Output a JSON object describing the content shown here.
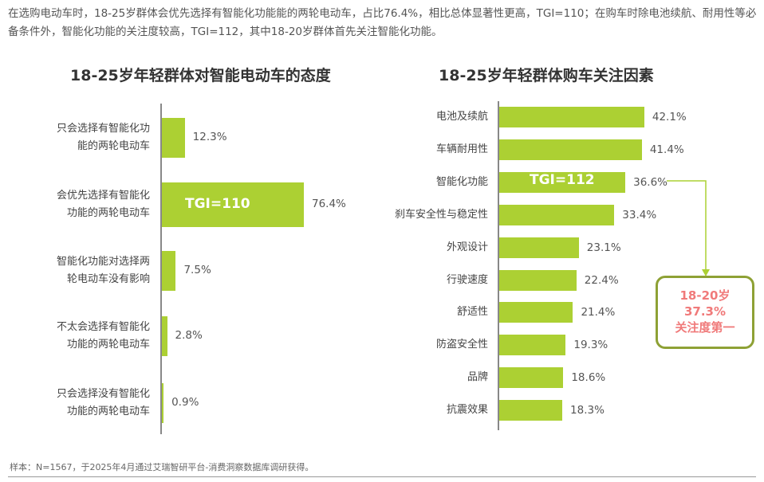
{
  "intro": "在选购电动车时，18-25岁群体会优先选择有智能化功能能的两轮电动车，占比76.4%，相比总体显著性更高，TGI=110；在购车时除电池续航、耐用性等必备条件外，智能化功能的关注度较高，TGI=112，其中18-20岁群体首先关注智能化功能。",
  "chart_data": [
    {
      "type": "bar",
      "orientation": "horizontal",
      "title": "18-25岁年轻群体对智能电动车的态度",
      "categories": [
        "只会选择有智能化功能的两轮电动车",
        "会优先选择有智能化功能的两轮电动车",
        "智能化功能对选择两轮电动车没有影响",
        "不太会选择有智能化功能的两轮电动车",
        "只会选择没有智能化功能的两轮电动车"
      ],
      "label_lines": [
        [
          "只会选择有智能化功",
          "能的两轮电动车"
        ],
        [
          "会优先选择有智能化",
          "功能的两轮电动车"
        ],
        [
          "智能化功能对选择两",
          "轮电动车没有影响"
        ],
        [
          "不太会选择有智能化",
          "功能的两轮电动车"
        ],
        [
          "只会选择没有智能化",
          "功能的两轮电动车"
        ]
      ],
      "values": [
        12.3,
        76.4,
        7.5,
        2.8,
        0.9
      ],
      "value_labels": [
        "12.3%",
        "76.4%",
        "7.5%",
        "2.8%",
        "0.9%"
      ],
      "annotation": "TGI=110",
      "unit": "%"
    },
    {
      "type": "bar",
      "orientation": "horizontal",
      "title": "18-25岁年轻群体购车关注因素",
      "categories": [
        "电池及续航",
        "车辆耐用性",
        "智能化功能",
        "刹车安全性与稳定性",
        "外观设计",
        "行驶速度",
        "舒适性",
        "防盗安全性",
        "品牌",
        "抗震效果"
      ],
      "values": [
        42.1,
        41.4,
        36.6,
        33.4,
        23.1,
        22.4,
        21.4,
        19.3,
        18.6,
        18.3
      ],
      "value_labels": [
        "42.1%",
        "41.4%",
        "36.6%",
        "33.4%",
        "23.1%",
        "22.4%",
        "21.4%",
        "19.3%",
        "18.6%",
        "18.3%"
      ],
      "annotation": "TGI=112",
      "callout": [
        "18-20岁",
        "37.3%",
        "关注度第一"
      ],
      "unit": "%"
    }
  ],
  "colors": {
    "bar": "#acd033",
    "callout_border": "#8ea135",
    "callout_text": "#f07a7a"
  },
  "footer": "样本：N=1567，于2025年4月通过艾瑞智研平台-消费洞察数据库调研获得。"
}
